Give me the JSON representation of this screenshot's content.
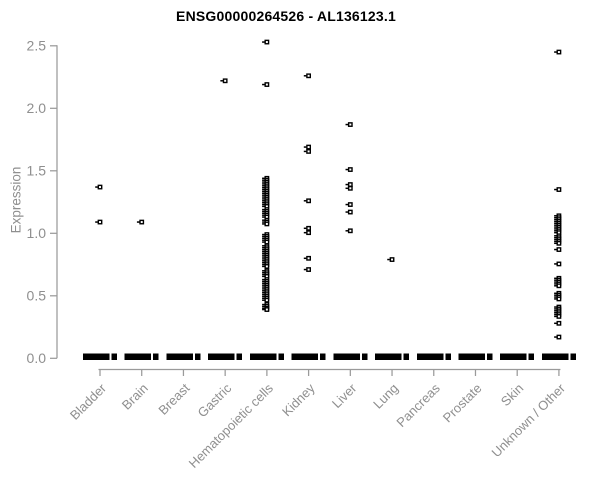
{
  "chart_data": {
    "type": "scatter",
    "title": "ENSG00000264526 - AL136123.1",
    "ylabel": "Expression",
    "xlabel": "",
    "ylim": [
      0,
      2.5
    ],
    "grid": false,
    "legend": false,
    "marker": "open-square",
    "colors": {
      "marker": "#000000",
      "axis": "#9a9a9a",
      "tick_label": "#8f8f8f",
      "title": "#000000",
      "background": "#ffffff"
    },
    "yticks": [
      {
        "value": 0.0,
        "label": "0.0"
      },
      {
        "value": 0.5,
        "label": "0.5"
      },
      {
        "value": 1.0,
        "label": "1.0"
      },
      {
        "value": 1.5,
        "label": "1.5"
      },
      {
        "value": 2.0,
        "label": "2.0"
      },
      {
        "value": 2.5,
        "label": "2.5"
      }
    ],
    "categories": [
      "Bladder",
      "Brain",
      "Breast",
      "Gastric",
      "Hematopoietic cells",
      "Kidney",
      "Liver",
      "Lung",
      "Pancreas",
      "Prostate",
      "Skin",
      "Unknown / Other"
    ],
    "series": [
      {
        "category": "Bladder",
        "zero_band": true,
        "values": [
          1.37,
          1.09
        ]
      },
      {
        "category": "Brain",
        "zero_band": true,
        "values": [
          1.09
        ]
      },
      {
        "category": "Breast",
        "zero_band": true,
        "values": []
      },
      {
        "category": "Gastric",
        "zero_band": true,
        "values": [
          2.22
        ]
      },
      {
        "category": "Hematopoietic cells",
        "zero_band": true,
        "values": [
          2.53,
          2.19,
          1.44,
          1.425,
          1.41,
          1.395,
          1.38,
          1.365,
          1.35,
          1.335,
          1.32,
          1.305,
          1.29,
          1.275,
          1.26,
          1.245,
          1.23,
          1.215,
          1.19,
          1.175,
          1.16,
          1.145,
          1.13,
          1.105,
          1.09,
          1.075,
          0.99,
          0.975,
          0.96,
          0.945,
          0.93,
          0.9,
          0.885,
          0.87,
          0.855,
          0.84,
          0.825,
          0.81,
          0.795,
          0.78,
          0.765,
          0.75,
          0.735,
          0.7,
          0.685,
          0.67,
          0.655,
          0.63,
          0.615,
          0.6,
          0.585,
          0.57,
          0.555,
          0.54,
          0.525,
          0.51,
          0.495,
          0.48,
          0.465,
          0.43,
          0.415,
          0.4,
          0.39
        ]
      },
      {
        "category": "Kidney",
        "zero_band": true,
        "values": [
          2.26,
          1.69,
          1.655,
          1.26,
          1.04,
          1.005,
          0.8,
          0.71
        ]
      },
      {
        "category": "Liver",
        "zero_band": true,
        "values": [
          1.87,
          1.51,
          1.39,
          1.36,
          1.23,
          1.17,
          1.02
        ]
      },
      {
        "category": "Lung",
        "zero_band": true,
        "values": [
          0.79
        ]
      },
      {
        "category": "Pancreas",
        "zero_band": true,
        "values": []
      },
      {
        "category": "Prostate",
        "zero_band": true,
        "values": []
      },
      {
        "category": "Skin",
        "zero_band": true,
        "values": []
      },
      {
        "category": "Unknown / Other",
        "zero_band": true,
        "values": [
          2.45,
          1.35,
          1.14,
          1.125,
          1.11,
          1.095,
          1.08,
          1.065,
          1.05,
          1.035,
          1.02,
          1.005,
          0.98,
          0.965,
          0.95,
          0.935,
          0.92,
          0.87,
          0.755,
          0.64,
          0.625,
          0.61,
          0.595,
          0.58,
          0.52,
          0.505,
          0.49,
          0.475,
          0.41,
          0.395,
          0.38,
          0.365,
          0.35,
          0.335,
          0.28,
          0.17
        ]
      }
    ]
  }
}
